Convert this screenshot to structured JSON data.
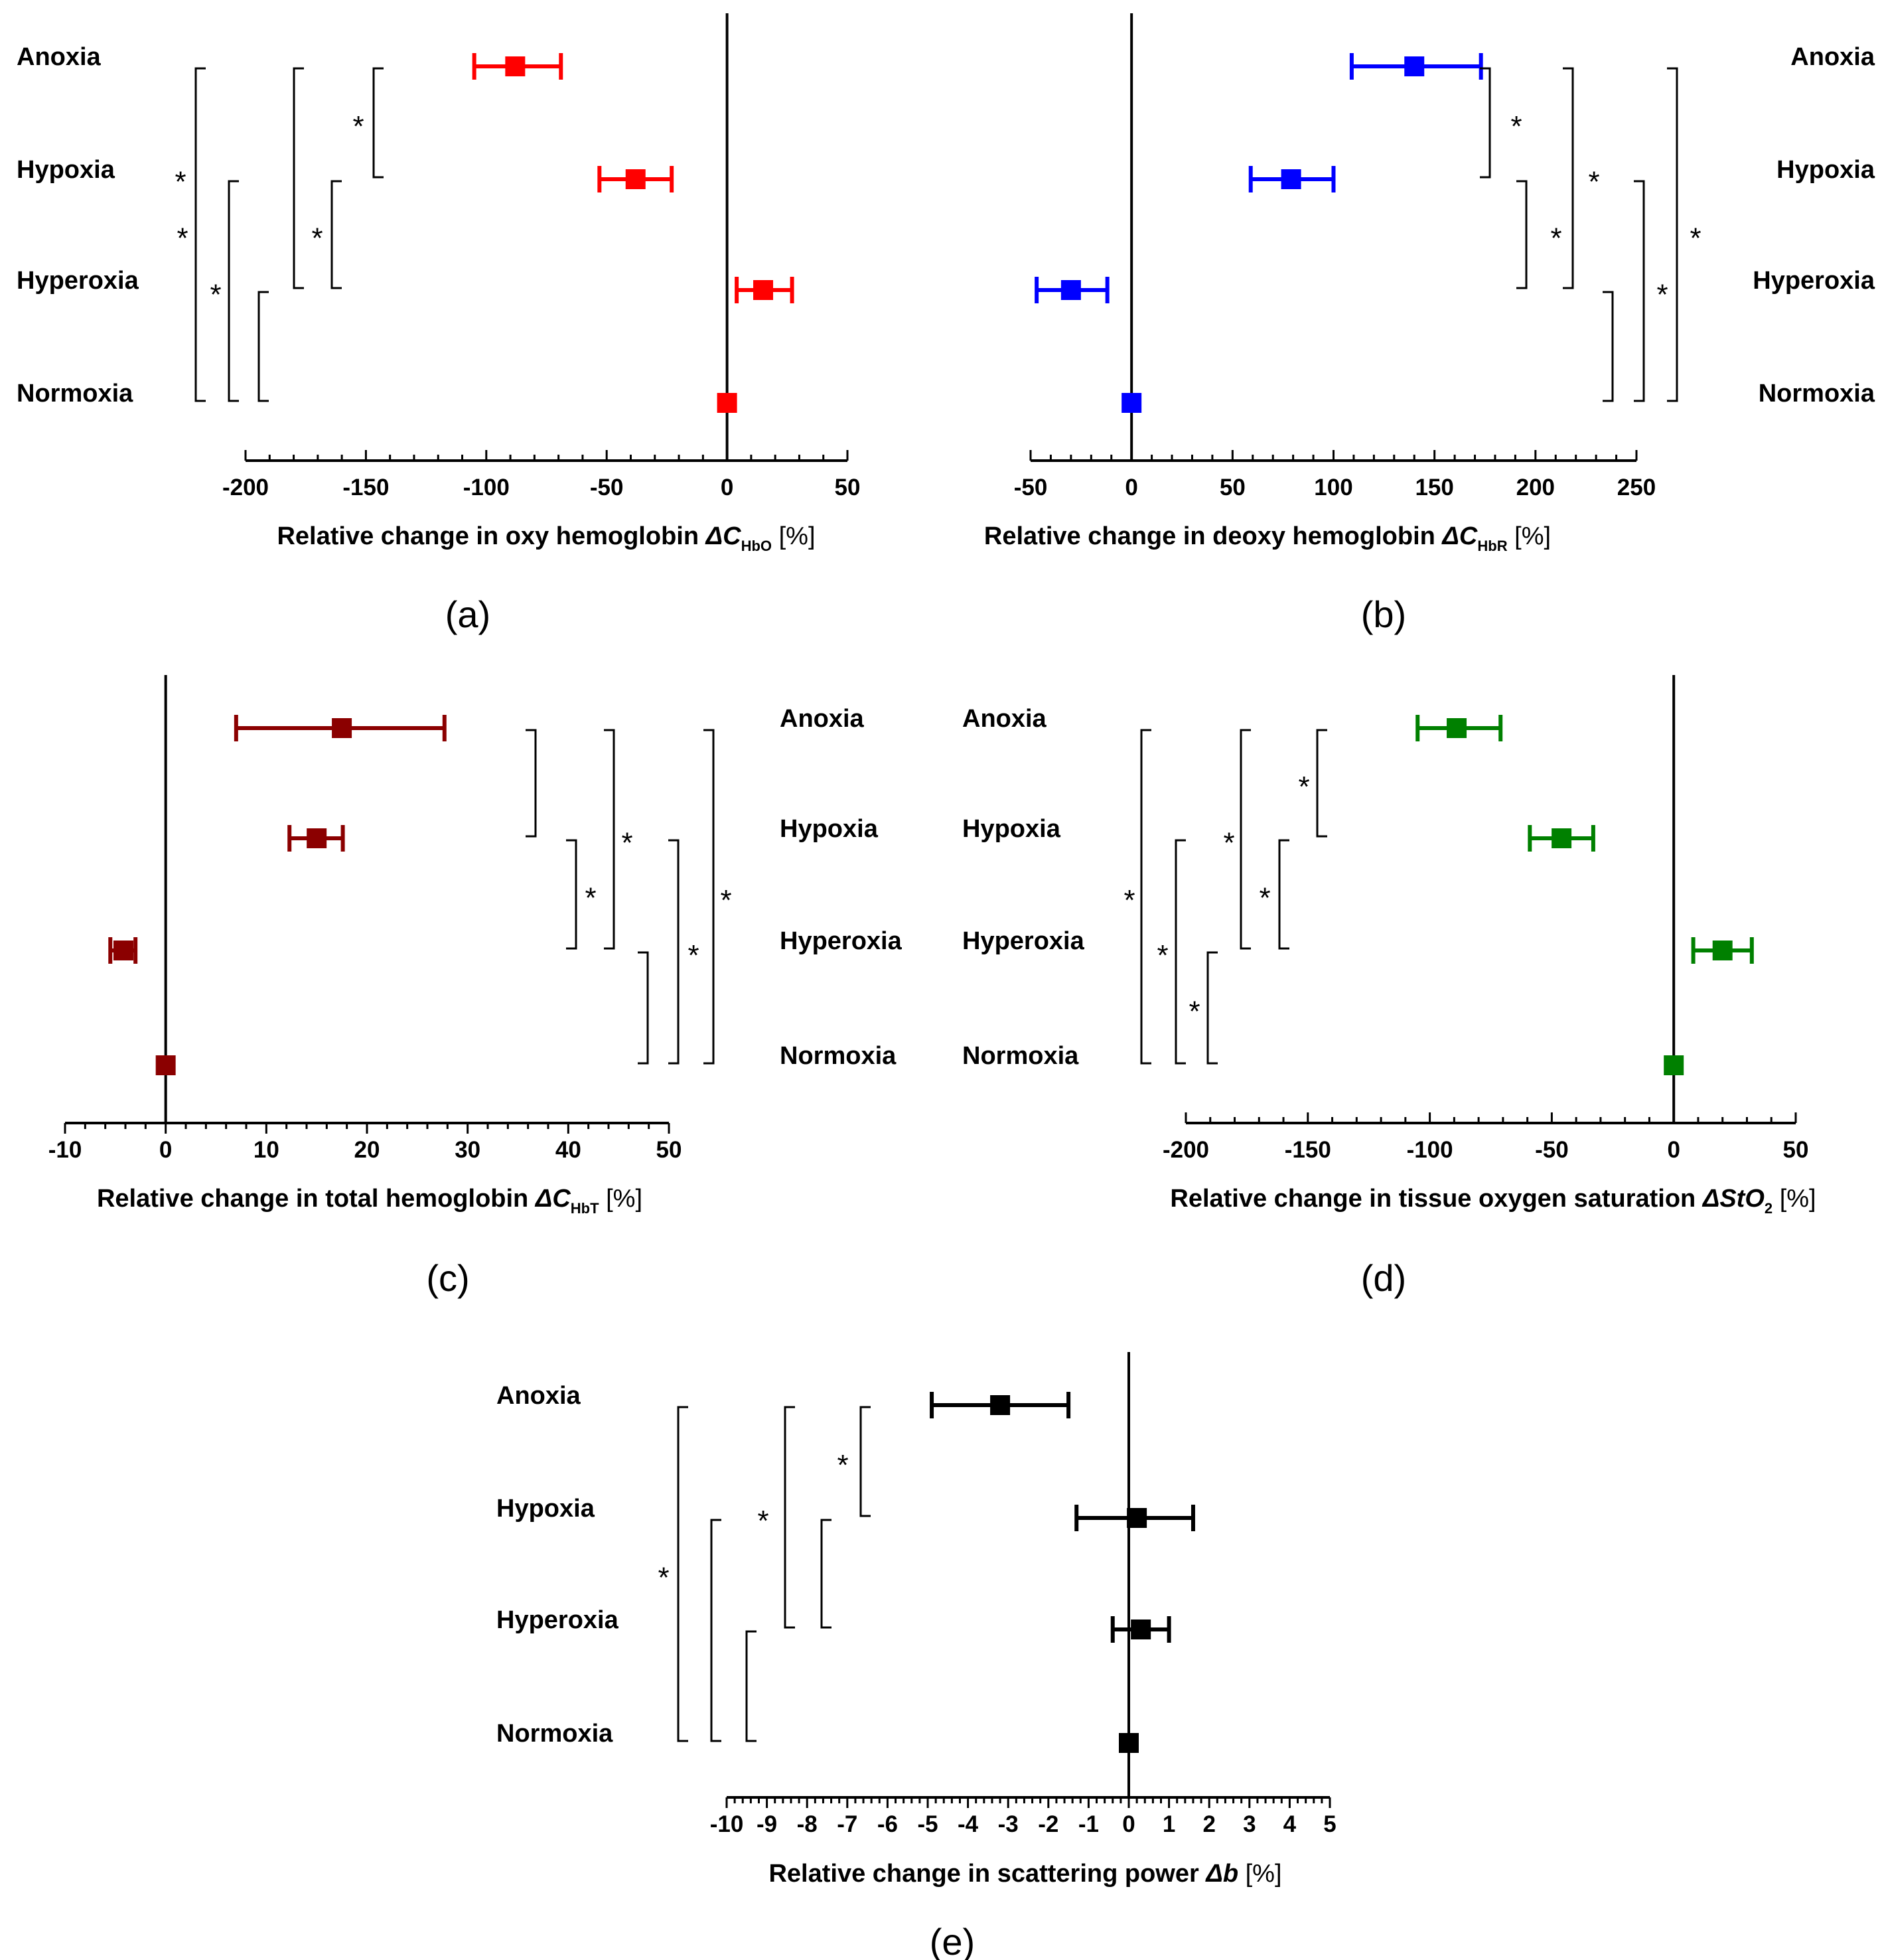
{
  "chart_data": [
    {
      "panel": "(a)",
      "type": "forest",
      "color": "#ff0000",
      "categories": [
        "Anoxia",
        "Hypoxia",
        "Hyperoxia",
        "Normoxia"
      ],
      "means": [
        -88,
        -38,
        15,
        0
      ],
      "lower": [
        -105,
        -53,
        4,
        0
      ],
      "upper": [
        -69,
        -23,
        27,
        0
      ],
      "xlim": [
        -200,
        50
      ],
      "xticks": [
        -200,
        -150,
        -100,
        -50,
        0,
        50
      ],
      "xlabel_parts": [
        "Relative change in oxy hemoglobin ",
        "ΔC",
        "HbO",
        " [%]"
      ],
      "significance": [
        {
          "from": "Anoxia",
          "to": "Normoxia",
          "label": "*"
        },
        {
          "from": "Hypoxia",
          "to": "Normoxia",
          "label": "*"
        },
        {
          "from": "Hyperoxia",
          "to": "Normoxia",
          "label": ""
        },
        {
          "from": "Anoxia",
          "to": "Hyperoxia",
          "label": "*"
        },
        {
          "from": "Hypoxia",
          "to": "Hyperoxia",
          "label": "*"
        },
        {
          "from": "Anoxia",
          "to": "Hypoxia",
          "label": "*"
        }
      ]
    },
    {
      "panel": "(b)",
      "type": "forest",
      "color": "#0000ff",
      "categories": [
        "Anoxia",
        "Hypoxia",
        "Hyperoxia",
        "Normoxia"
      ],
      "means": [
        140,
        79,
        -30,
        0
      ],
      "lower": [
        109,
        59,
        -47,
        0
      ],
      "upper": [
        173,
        100,
        -12,
        0
      ],
      "xlim": [
        -50,
        250
      ],
      "xticks": [
        -50,
        0,
        50,
        100,
        150,
        200,
        250
      ],
      "xlabel_parts": [
        "Relative change in deoxy hemoglobin ",
        "ΔC",
        "HbR",
        " [%]"
      ],
      "significance": [
        {
          "from": "Anoxia",
          "to": "Hypoxia",
          "label": "*"
        },
        {
          "from": "Hypoxia",
          "to": "Hyperoxia",
          "label": "*"
        },
        {
          "from": "Anoxia",
          "to": "Hyperoxia",
          "label": "*"
        },
        {
          "from": "Hyperoxia",
          "to": "Normoxia",
          "label": ""
        },
        {
          "from": "Hypoxia",
          "to": "Normoxia",
          "label": "*"
        },
        {
          "from": "Anoxia",
          "to": "Normoxia",
          "label": "*"
        }
      ]
    },
    {
      "panel": "(c)",
      "type": "forest",
      "color": "#8b0000",
      "categories": [
        "Anoxia",
        "Hypoxia",
        "Hyperoxia",
        "Normoxia"
      ],
      "means": [
        17.5,
        15,
        -4.2,
        0
      ],
      "lower": [
        7,
        12.3,
        -5.5,
        0
      ],
      "upper": [
        27.7,
        17.6,
        -3,
        0
      ],
      "xlim": [
        -10,
        50
      ],
      "xticks": [
        -10,
        0,
        10,
        20,
        30,
        40,
        50
      ],
      "xlabel_parts": [
        "Relative change in total hemoglobin ",
        "ΔC",
        "HbT",
        " [%]"
      ],
      "significance": [
        {
          "from": "Anoxia",
          "to": "Hypoxia",
          "label": ""
        },
        {
          "from": "Hypoxia",
          "to": "Hyperoxia",
          "label": "*"
        },
        {
          "from": "Anoxia",
          "to": "Hyperoxia",
          "label": "*"
        },
        {
          "from": "Hyperoxia",
          "to": "Normoxia",
          "label": ""
        },
        {
          "from": "Hypoxia",
          "to": "Normoxia",
          "label": "*"
        },
        {
          "from": "Anoxia",
          "to": "Normoxia",
          "label": "*"
        }
      ]
    },
    {
      "panel": "(d)",
      "type": "forest",
      "color": "#008000",
      "categories": [
        "Anoxia",
        "Hypoxia",
        "Hyperoxia",
        "Normoxia"
      ],
      "means": [
        -89,
        -46,
        20,
        0
      ],
      "lower": [
        -105,
        -59,
        8,
        0
      ],
      "upper": [
        -71,
        -33,
        32,
        0
      ],
      "xlim": [
        -200,
        50
      ],
      "xticks": [
        -200,
        -150,
        -100,
        -50,
        0,
        50
      ],
      "xlabel_parts": [
        "Relative change in tissue oxygen saturation ",
        "ΔStO",
        "2",
        " [%]"
      ],
      "significance": [
        {
          "from": "Anoxia",
          "to": "Normoxia",
          "label": "*"
        },
        {
          "from": "Hypoxia",
          "to": "Normoxia",
          "label": "*"
        },
        {
          "from": "Hyperoxia",
          "to": "Normoxia",
          "label": "*"
        },
        {
          "from": "Anoxia",
          "to": "Hyperoxia",
          "label": "*"
        },
        {
          "from": "Hypoxia",
          "to": "Hyperoxia",
          "label": "*"
        },
        {
          "from": "Anoxia",
          "to": "Hypoxia",
          "label": "*"
        }
      ]
    },
    {
      "panel": "(e)",
      "type": "forest",
      "color": "#000000",
      "categories": [
        "Anoxia",
        "Hypoxia",
        "Hyperoxia",
        "Normoxia"
      ],
      "means": [
        -3.2,
        0.2,
        0.3,
        0
      ],
      "lower": [
        -4.9,
        -1.3,
        -0.4,
        0
      ],
      "upper": [
        -1.5,
        1.6,
        1.0,
        0
      ],
      "xlim": [
        -10,
        5
      ],
      "xticks": [
        -10,
        -9,
        -8,
        -7,
        -6,
        -5,
        -4,
        -3,
        -2,
        -1,
        0,
        1,
        2,
        3,
        4,
        5
      ],
      "xlabel_parts": [
        "Relative change in scattering power ",
        "Δb",
        "",
        " [%]"
      ],
      "significance": [
        {
          "from": "Anoxia",
          "to": "Normoxia",
          "label": "*"
        },
        {
          "from": "Hypoxia",
          "to": "Normoxia",
          "label": ""
        },
        {
          "from": "Hyperoxia",
          "to": "Normoxia",
          "label": ""
        },
        {
          "from": "Anoxia",
          "to": "Hyperoxia",
          "label": "*"
        },
        {
          "from": "Hypoxia",
          "to": "Hyperoxia",
          "label": ""
        },
        {
          "from": "Anoxia",
          "to": "Hypoxia",
          "label": "*"
        }
      ]
    }
  ]
}
